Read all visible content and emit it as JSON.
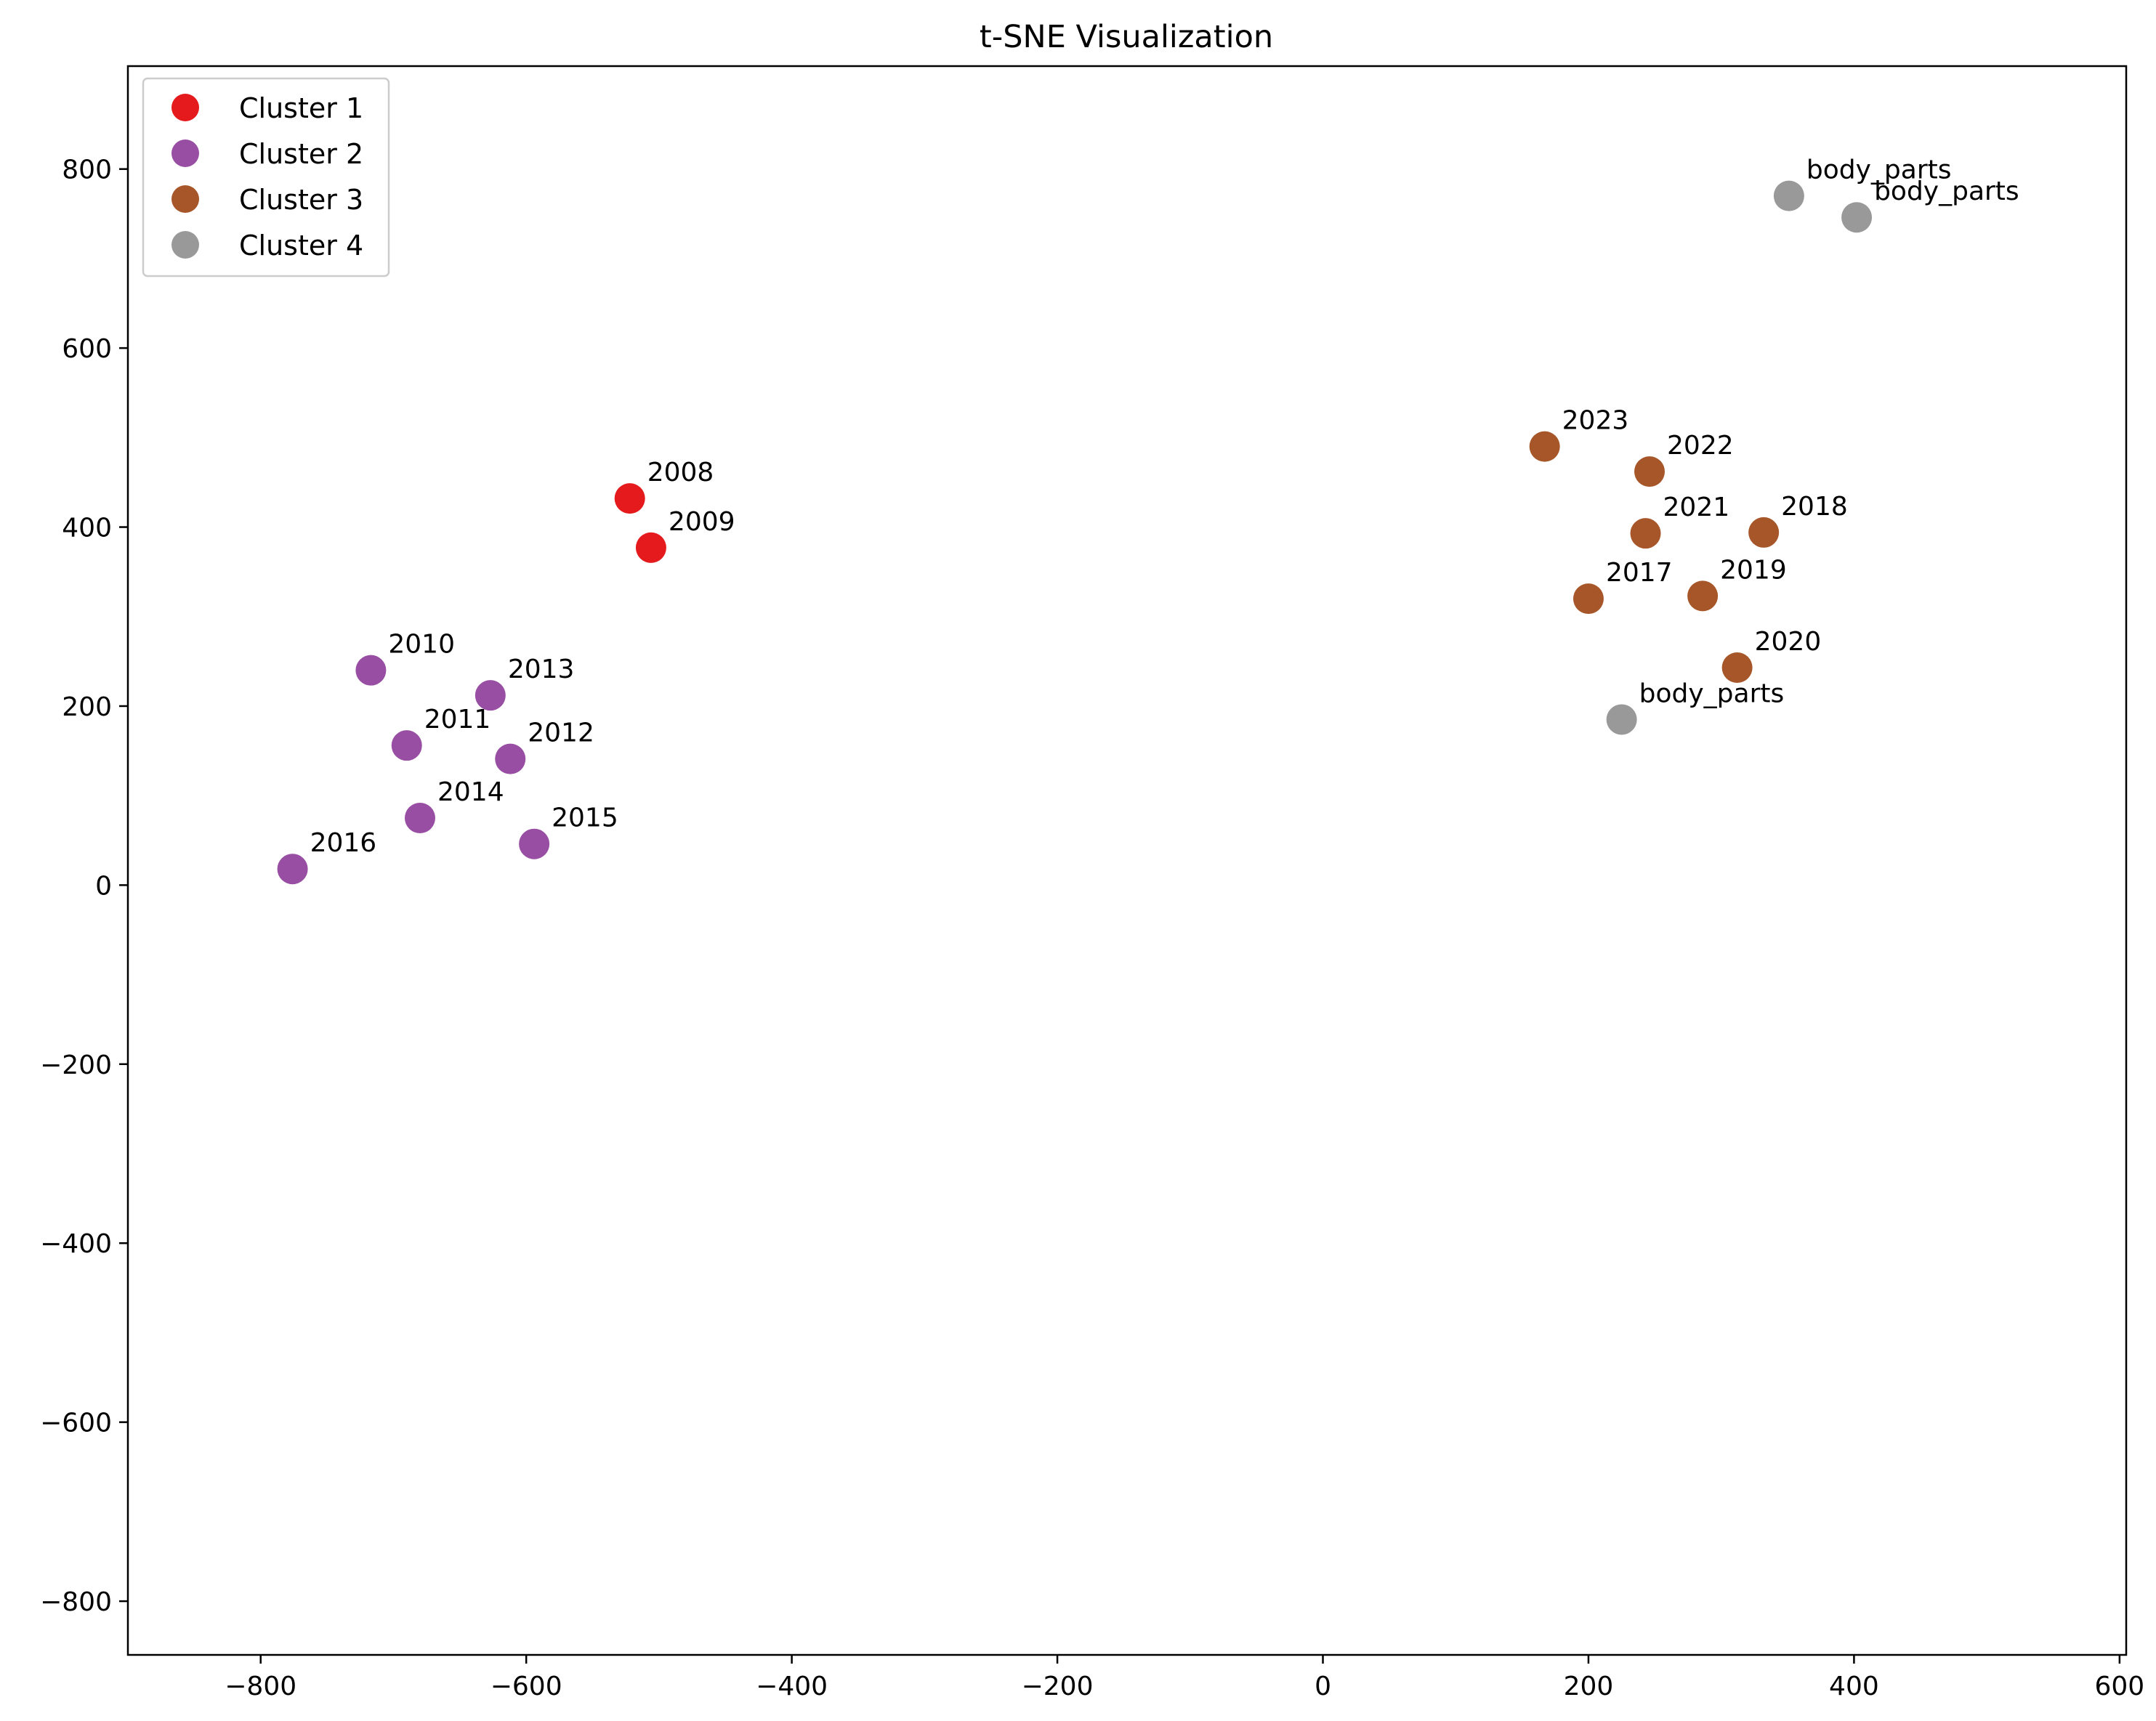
{
  "chart_data": {
    "type": "scatter",
    "title": "t-SNE Visualization",
    "xlabel": "",
    "ylabel": "",
    "xlim": [
      -900,
      605
    ],
    "ylim": [
      -860,
      915
    ],
    "xticks": [
      -800,
      -600,
      -400,
      -200,
      0,
      200,
      400,
      600
    ],
    "yticks": [
      -800,
      -600,
      -400,
      -200,
      0,
      200,
      400,
      600,
      800
    ],
    "grid": false,
    "legend_position": "upper-left",
    "series": [
      {
        "name": "Cluster 1",
        "color": "#e41a1c",
        "points": [
          {
            "x": -522,
            "y": 432,
            "label": "2008"
          },
          {
            "x": -506,
            "y": 377,
            "label": "2009"
          }
        ]
      },
      {
        "name": "Cluster 2",
        "color": "#984ea3",
        "points": [
          {
            "x": -717,
            "y": 240,
            "label": "2010"
          },
          {
            "x": -690,
            "y": 156,
            "label": "2011"
          },
          {
            "x": -612,
            "y": 141,
            "label": "2012"
          },
          {
            "x": -627,
            "y": 212,
            "label": "2013"
          },
          {
            "x": -680,
            "y": 75,
            "label": "2014"
          },
          {
            "x": -594,
            "y": 46,
            "label": "2015"
          },
          {
            "x": -776,
            "y": 18,
            "label": "2016"
          }
        ]
      },
      {
        "name": "Cluster 3",
        "color": "#a65628",
        "points": [
          {
            "x": 200,
            "y": 320,
            "label": "2017"
          },
          {
            "x": 332,
            "y": 394,
            "label": "2018"
          },
          {
            "x": 286,
            "y": 323,
            "label": "2019"
          },
          {
            "x": 312,
            "y": 243,
            "label": "2020"
          },
          {
            "x": 243,
            "y": 393,
            "label": "2021"
          },
          {
            "x": 246,
            "y": 462,
            "label": "2022"
          },
          {
            "x": 167,
            "y": 490,
            "label": "2023"
          }
        ]
      },
      {
        "name": "Cluster 4",
        "color": "#999999",
        "points": [
          {
            "x": 351,
            "y": 770,
            "label": "body_parts"
          },
          {
            "x": 402,
            "y": 746,
            "label": "body_parts"
          },
          {
            "x": 225,
            "y": 185,
            "label": "body_parts"
          }
        ]
      }
    ]
  }
}
